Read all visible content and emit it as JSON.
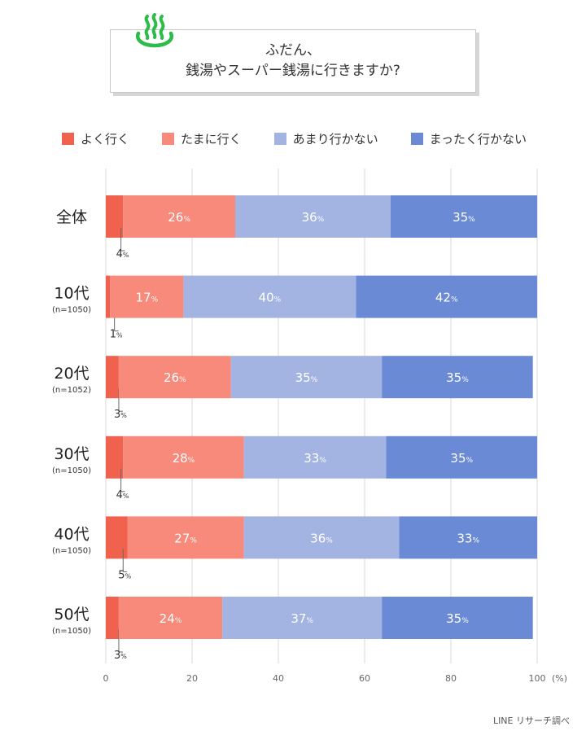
{
  "title": {
    "line1": "ふだん、",
    "line2": "銭湯やスーパー銭湯に行きますか?"
  },
  "icon": "hot-spring-icon",
  "colors": {
    "yoku": "#f0624d",
    "tamani": "#f78a7a",
    "amari": "#a3b4e3",
    "mattaku": "#6b8ad6",
    "grid": "#d9d9d9",
    "icon": "#2dbb4a"
  },
  "source": "LINE リサーチ調べ",
  "chart_data": {
    "type": "bar",
    "orientation": "horizontal",
    "stacked": true,
    "unit": "%",
    "x_unit_label": "(%)",
    "xlim": [
      0,
      100
    ],
    "x_ticks": [
      "0",
      "20",
      "40",
      "60",
      "80",
      "100"
    ],
    "grid": true,
    "legend_position": "top",
    "categories": [
      {
        "label": "全体",
        "sub": ""
      },
      {
        "label": "10代",
        "sub": "(n=1050)"
      },
      {
        "label": "20代",
        "sub": "(n=1052)"
      },
      {
        "label": "30代",
        "sub": "(n=1050)"
      },
      {
        "label": "40代",
        "sub": "(n=1050)"
      },
      {
        "label": "50代",
        "sub": "(n=1050)"
      }
    ],
    "series": [
      {
        "name": "よく行く",
        "color_key": "yoku",
        "values": [
          4,
          1,
          3,
          4,
          5,
          3
        ]
      },
      {
        "name": "たまに行く",
        "color_key": "tamani",
        "values": [
          26,
          17,
          26,
          28,
          27,
          24
        ]
      },
      {
        "name": "あまり行かない",
        "color_key": "amari",
        "values": [
          36,
          40,
          35,
          33,
          36,
          37
        ]
      },
      {
        "name": "まったく行かない",
        "color_key": "mattaku",
        "values": [
          35,
          42,
          35,
          35,
          33,
          35
        ]
      }
    ]
  }
}
